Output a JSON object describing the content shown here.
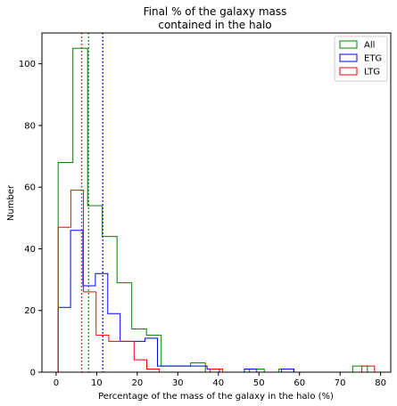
{
  "chart_data": {
    "type": "histogram",
    "title_lines": [
      "Final % of the galaxy mass",
      "contained in the halo"
    ],
    "xlabel": "Percentage of the mass of the galaxy in the halo (%)",
    "ylabel": "Number",
    "xlim": [
      -3.5,
      82.5
    ],
    "ylim": [
      0,
      110
    ],
    "xticks": [
      0,
      10,
      20,
      30,
      40,
      50,
      60,
      70,
      80
    ],
    "yticks": [
      0,
      20,
      40,
      60,
      80,
      100
    ],
    "legend_position": "top-right",
    "series": [
      {
        "name": "All",
        "color": "#008000",
        "bin_edges": [
          0.5,
          4.13,
          7.76,
          11.39,
          15.02,
          18.65,
          22.28,
          25.91,
          29.54,
          33.17,
          36.8,
          40.43,
          44.06,
          47.69,
          51.32,
          54.95,
          58.58,
          62.21,
          65.84,
          69.47,
          73.1,
          76.73,
          80.36
        ],
        "counts": [
          68,
          105,
          54,
          44,
          29,
          14,
          12,
          2,
          2,
          3,
          0,
          0,
          0,
          1,
          0,
          1,
          0,
          0,
          0,
          0,
          2,
          0
        ],
        "median_line": 8.0
      },
      {
        "name": "ETG",
        "color": "#0000ff",
        "bin_edges": [
          0.5,
          3.56,
          6.62,
          9.68,
          12.74,
          15.8,
          18.86,
          21.92,
          24.98,
          28.04,
          31.1,
          34.16,
          37.22,
          40.28,
          43.34,
          46.4,
          49.46,
          52.52,
          55.58,
          58.64,
          61.7
        ],
        "counts": [
          21,
          46,
          28,
          32,
          19,
          10,
          10,
          11,
          2,
          2,
          2,
          2,
          1,
          0,
          0,
          1,
          0,
          0,
          1,
          0
        ],
        "median_line": 11.5
      },
      {
        "name": "LTG",
        "color": "#ff0000",
        "bin_edges": [
          0.5,
          3.62,
          6.74,
          9.86,
          12.98,
          16.1,
          19.22,
          22.34,
          25.46,
          28.58,
          31.7,
          34.82,
          37.94,
          41.06,
          44.18,
          47.3,
          50.42,
          53.54,
          56.66,
          59.78,
          62.9,
          66.02,
          69.14,
          72.26,
          75.38,
          78.5
        ],
        "counts": [
          47,
          59,
          26,
          12,
          10,
          10,
          4,
          1,
          0,
          0,
          0,
          0,
          1,
          0,
          0,
          0,
          0,
          0,
          0,
          0,
          0,
          0,
          0,
          0,
          2
        ],
        "median_line": 6.3
      }
    ]
  }
}
